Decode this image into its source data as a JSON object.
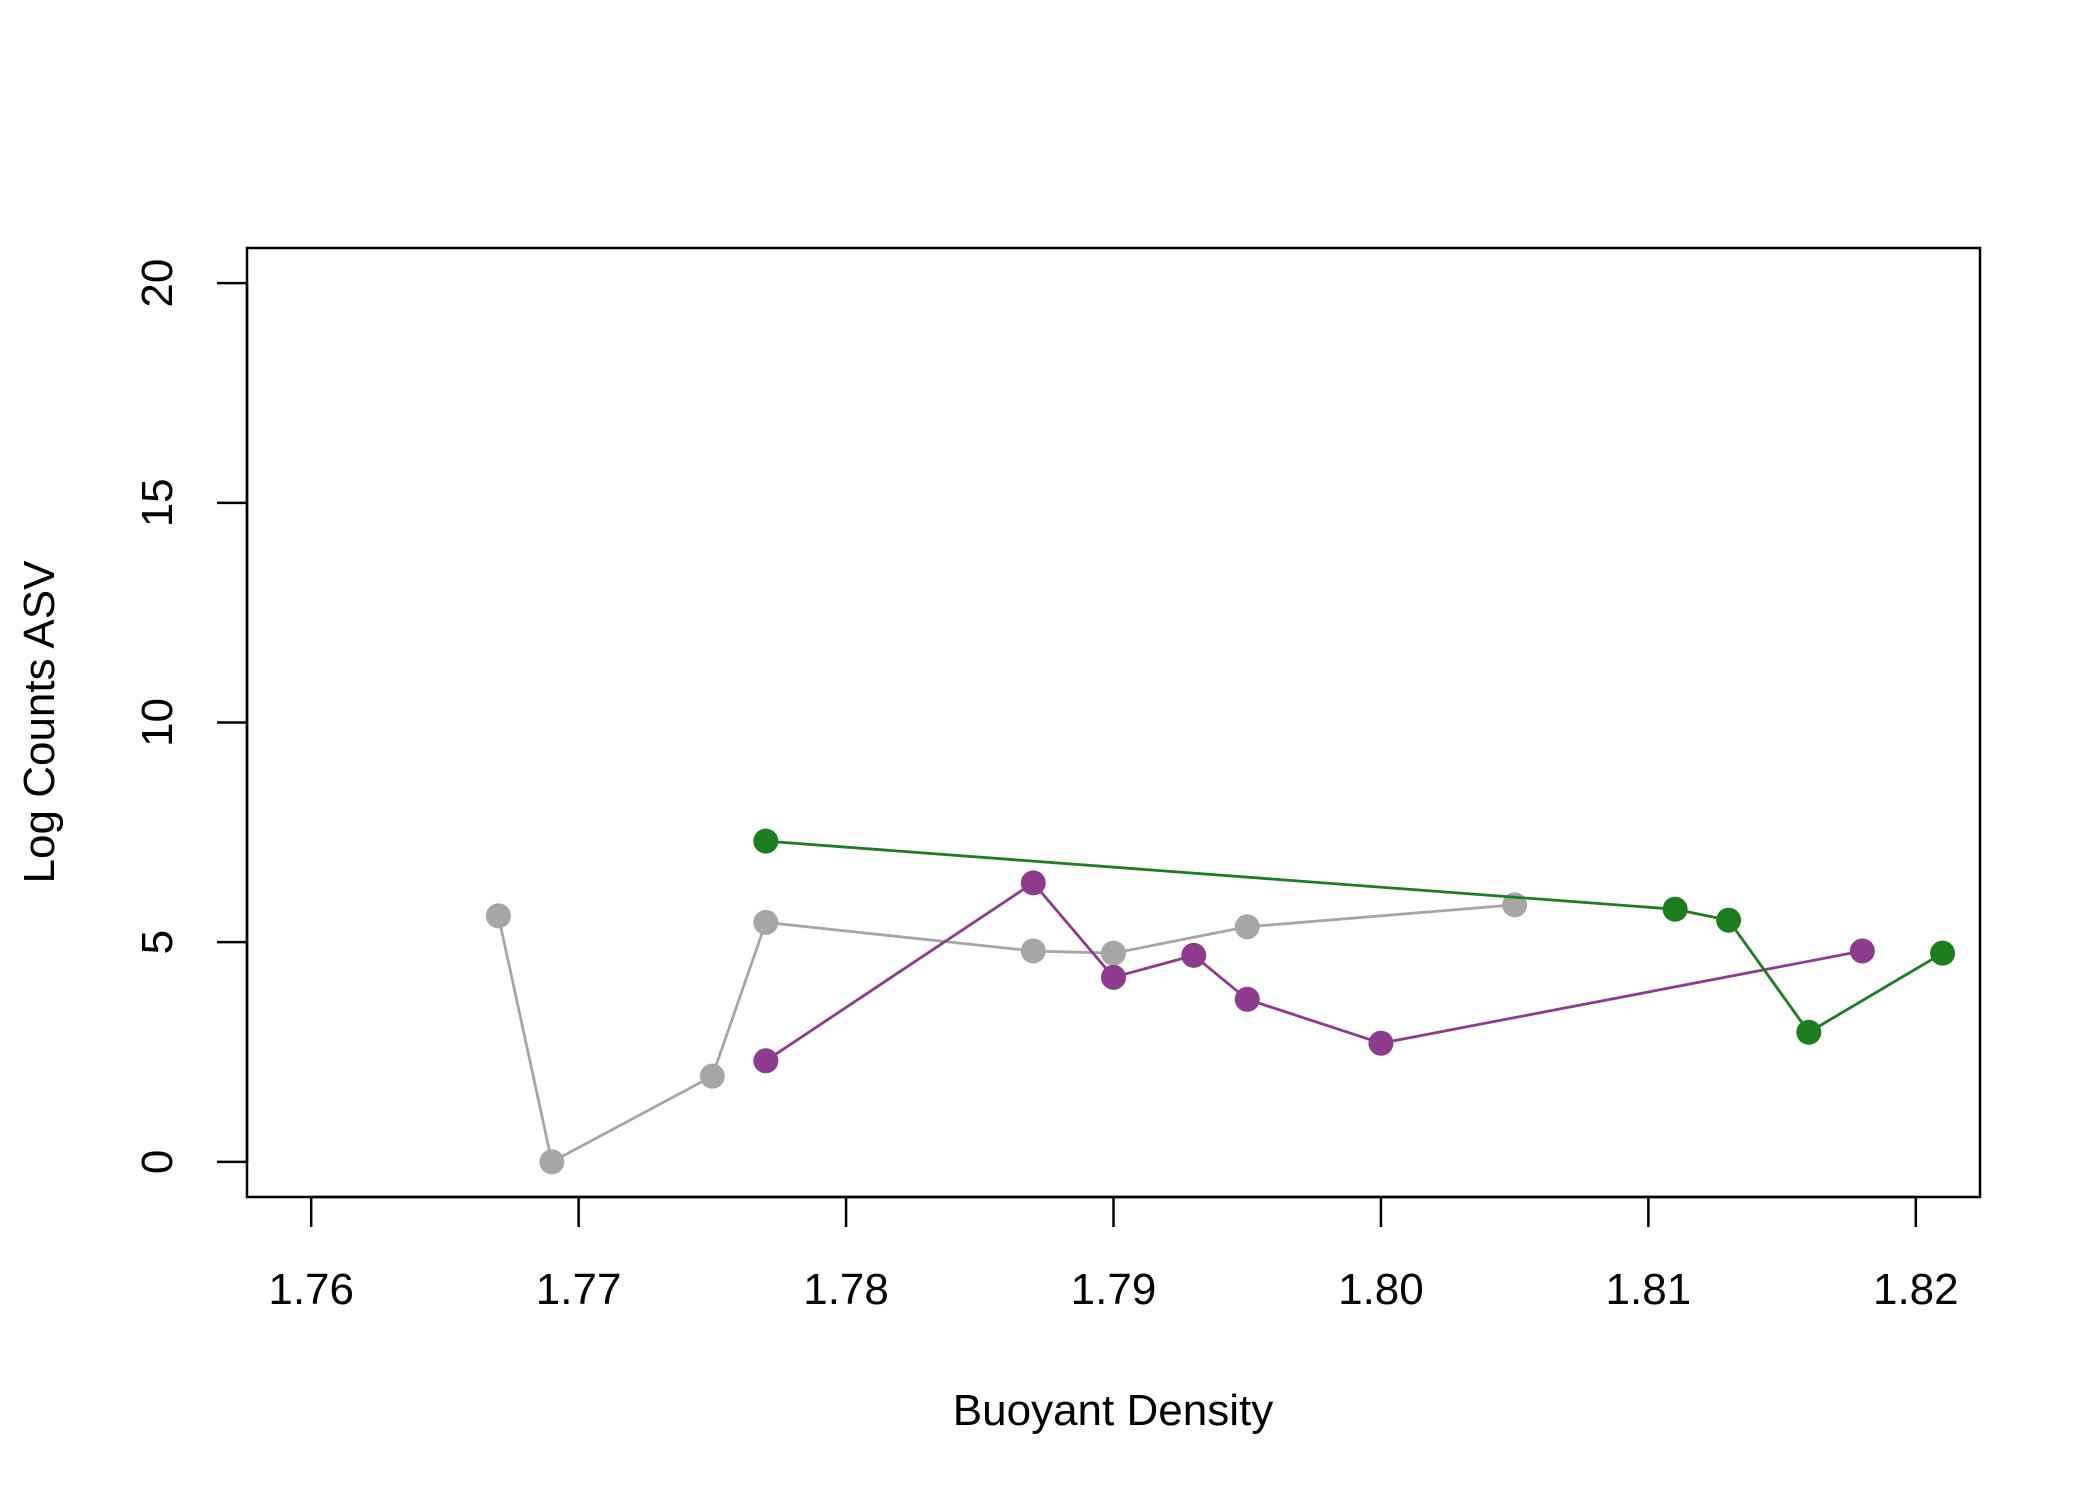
{
  "chart_data": {
    "type": "line",
    "title": "",
    "xlabel": "Buoyant Density",
    "ylabel": "Log Counts ASV",
    "xlim": [
      1.7576,
      1.8224
    ],
    "ylim": [
      -0.8,
      20.8
    ],
    "x_ticks": [
      1.76,
      1.77,
      1.78,
      1.79,
      1.8,
      1.81,
      1.82
    ],
    "x_tick_labels": [
      "1.76",
      "1.77",
      "1.78",
      "1.79",
      "1.80",
      "1.81",
      "1.82"
    ],
    "y_ticks": [
      0,
      5,
      10,
      15,
      20
    ],
    "y_tick_labels": [
      "0",
      "5",
      "10",
      "15",
      "20"
    ],
    "grid": false,
    "legend": "none",
    "series": [
      {
        "color": "#a6a6a6",
        "points": [
          {
            "x": 1.767,
            "y": 5.6
          },
          {
            "x": 1.769,
            "y": 0.0
          },
          {
            "x": 1.775,
            "y": 1.95
          },
          {
            "x": 1.777,
            "y": 5.45
          },
          {
            "x": 1.787,
            "y": 4.8
          },
          {
            "x": 1.79,
            "y": 4.75
          },
          {
            "x": 1.795,
            "y": 5.35
          },
          {
            "x": 1.805,
            "y": 5.85
          }
        ]
      },
      {
        "color": "#8e3a8e",
        "points": [
          {
            "x": 1.777,
            "y": 2.3
          },
          {
            "x": 1.787,
            "y": 6.35
          },
          {
            "x": 1.79,
            "y": 4.2
          },
          {
            "x": 1.793,
            "y": 4.7
          },
          {
            "x": 1.795,
            "y": 3.7
          },
          {
            "x": 1.8,
            "y": 2.7
          },
          {
            "x": 1.818,
            "y": 4.8
          }
        ]
      },
      {
        "color": "#1e7d1e",
        "points": [
          {
            "x": 1.777,
            "y": 7.3
          },
          {
            "x": 1.811,
            "y": 5.75
          },
          {
            "x": 1.813,
            "y": 5.5
          },
          {
            "x": 1.816,
            "y": 2.95
          },
          {
            "x": 1.821,
            "y": 4.75
          }
        ]
      }
    ]
  }
}
